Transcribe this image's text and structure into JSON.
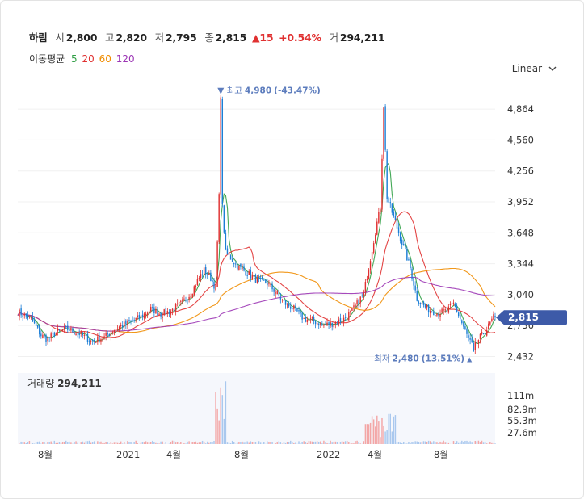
{
  "stock": {
    "name": "하림",
    "open_label": "시",
    "open": "2,800",
    "high_label": "고",
    "high": "2,820",
    "low_label": "저",
    "low": "2,795",
    "close_label": "종",
    "close": "2,815",
    "change": "15",
    "change_pct": "+0.54%",
    "volume_label": "거",
    "volume": "294,211"
  },
  "moving_avg": {
    "label": "이동평균",
    "periods": [
      {
        "value": "5",
        "color": "#2f9e44"
      },
      {
        "value": "20",
        "color": "#e03131"
      },
      {
        "value": "60",
        "color": "#f08c00"
      },
      {
        "value": "120",
        "color": "#9c36b5"
      }
    ]
  },
  "scale_selector": {
    "value": "Linear",
    "icon": "chevron-down-icon"
  },
  "colors": {
    "up": "#e03131",
    "down": "#1c7ed6",
    "price_tag": "#3d5aa8",
    "annot": "#5c7cbd"
  },
  "chart_data": {
    "type": "candlestick",
    "y_ticks": [
      "4,864",
      "4,560",
      "4,256",
      "3,952",
      "3,648",
      "3,344",
      "3,040",
      "2,736",
      "2,432"
    ],
    "y_tick_values": [
      4864,
      4560,
      4256,
      3952,
      3648,
      3344,
      3040,
      2736,
      2432
    ],
    "ylim": [
      2380,
      5000
    ],
    "x_ticks": [
      "8월",
      "2021",
      "4월",
      "8월",
      "2022",
      "4월",
      "8월"
    ],
    "current_price": {
      "label": "2,815",
      "value": 2815
    },
    "annotations": {
      "high": {
        "prefix": "▼ 최고",
        "value": "4,980",
        "pct": "(-43.47%)",
        "price": 4980
      },
      "low": {
        "prefix": "최저",
        "value": "2,480",
        "pct": "(13.51%)",
        "suffix": "▲",
        "price": 2480
      }
    },
    "price_path": [
      [
        0,
        2870
      ],
      [
        8,
        2800
      ],
      [
        14,
        2640
      ],
      [
        18,
        2600
      ],
      [
        24,
        2680
      ],
      [
        30,
        2700
      ],
      [
        38,
        2650
      ],
      [
        44,
        2580
      ],
      [
        52,
        2620
      ],
      [
        58,
        2700
      ],
      [
        66,
        2760
      ],
      [
        74,
        2820
      ],
      [
        80,
        2900
      ],
      [
        86,
        2850
      ],
      [
        92,
        2880
      ],
      [
        98,
        2950
      ],
      [
        104,
        3050
      ],
      [
        108,
        3180
      ],
      [
        112,
        3280
      ],
      [
        116,
        3200
      ],
      [
        119,
        3100
      ],
      [
        121,
        4000
      ],
      [
        122,
        4980
      ],
      [
        123,
        3900
      ],
      [
        125,
        3450
      ],
      [
        128,
        3400
      ],
      [
        132,
        3320
      ],
      [
        138,
        3250
      ],
      [
        144,
        3180
      ],
      [
        150,
        3150
      ],
      [
        156,
        3050
      ],
      [
        160,
        2960
      ],
      [
        166,
        2900
      ],
      [
        172,
        2800
      ],
      [
        178,
        2780
      ],
      [
        184,
        2740
      ],
      [
        190,
        2760
      ],
      [
        196,
        2800
      ],
      [
        200,
        2860
      ],
      [
        204,
        2950
      ],
      [
        208,
        3050
      ],
      [
        212,
        3400
      ],
      [
        216,
        3750
      ],
      [
        218,
        3900
      ],
      [
        220,
        4900
      ],
      [
        222,
        4000
      ],
      [
        226,
        3800
      ],
      [
        230,
        3600
      ],
      [
        236,
        3300
      ],
      [
        240,
        3000
      ],
      [
        246,
        2900
      ],
      [
        252,
        2860
      ],
      [
        258,
        2880
      ],
      [
        262,
        2950
      ],
      [
        266,
        2800
      ],
      [
        270,
        2640
      ],
      [
        274,
        2520
      ],
      [
        278,
        2620
      ],
      [
        282,
        2700
      ],
      [
        286,
        2815
      ]
    ],
    "volume": {
      "label": "거래량",
      "value": "294,211",
      "ticks": [
        "111m",
        "82.9m",
        "55.3m",
        "27.6m"
      ]
    }
  }
}
